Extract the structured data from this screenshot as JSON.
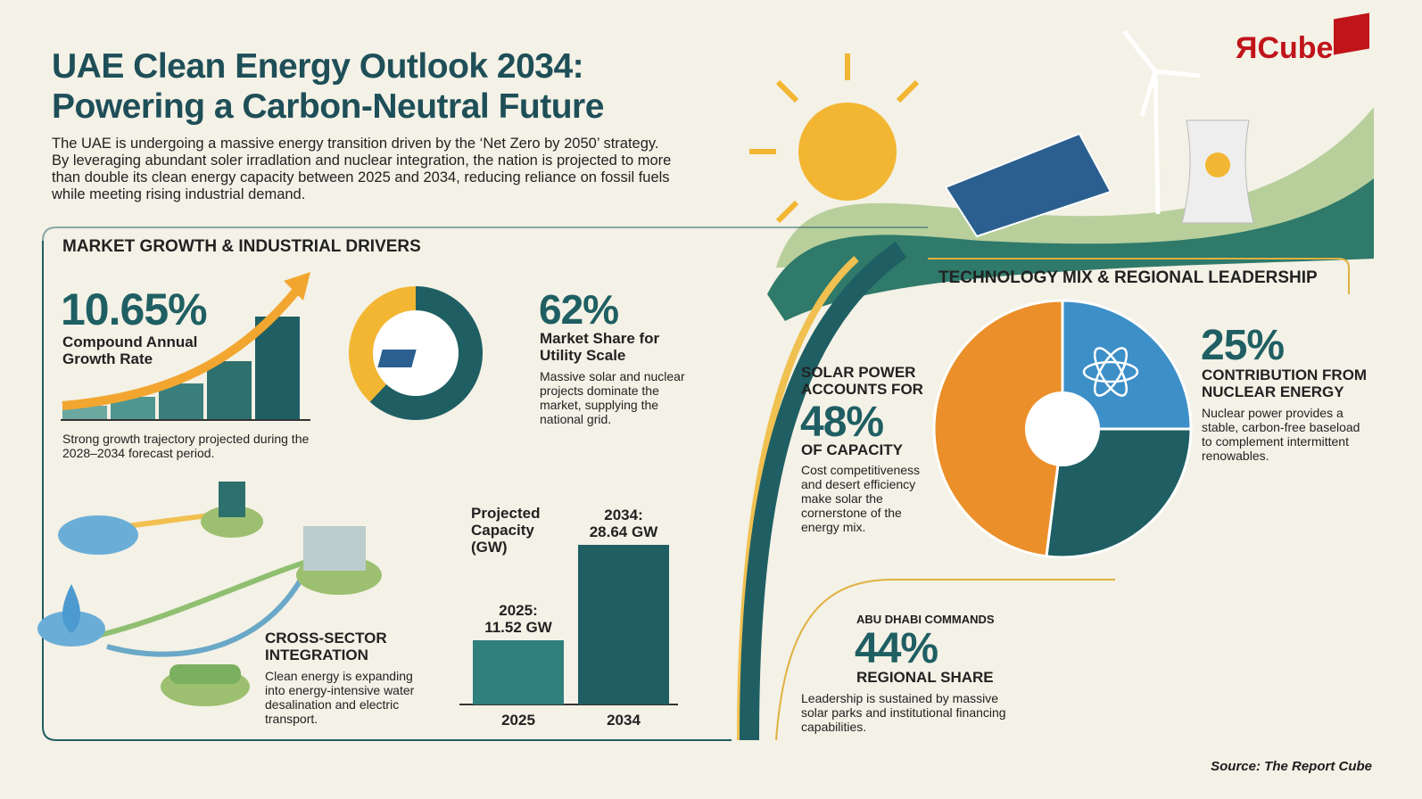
{
  "header": {
    "title_line1": "UAE Clean Energy Outlook 2034:",
    "title_line2": "Powering a Carbon-Neutral Future",
    "intro": "The UAE is undergoing a massive energy transition driven by the ‘Net Zero by 2050’ strategy. By leveraging abundant soler irradlation and nuclear integration, the nation is projected to more than double its clean energy capacity between 2025 and 2034, reducing reliance on fossil fuels while meeting rising industrial demand."
  },
  "logo": {
    "text": "ЯCube"
  },
  "market": {
    "title": "MARKET GROWTH & INDUSTRIAL DRIVERS",
    "cagr": {
      "value": "10.65%",
      "label": "Compound Annual Growth Rate",
      "note": "Strong growth trajectory projected during the 2028–2034 forecast period."
    },
    "share": {
      "value": "62%",
      "label": "Market Share for Utility Scale",
      "note": "Massive solar and nuclear projects dominate the market, supplying the national grid.",
      "percent": 62
    },
    "cross": {
      "label": "CROSS-SECTOR INTEGRATION",
      "note": "Clean energy is expanding into energy-intensive water desalination and electric transport."
    },
    "capacity": {
      "title": "Projected Capacity (GW)",
      "bars": [
        {
          "year": "2025",
          "label": "2025:",
          "value_label": "11.52 GW",
          "value": 11.52
        },
        {
          "year": "2034",
          "label": "2034:",
          "value_label": "28.64 GW",
          "value": 28.64
        }
      ]
    }
  },
  "tech": {
    "title": "TECHNOLOGY MIX & REGIONAL LEADERSHIP",
    "solar": {
      "pre": "SOLAR POWER ACCOUNTS FOR",
      "value": "48%",
      "post": "OF CAPACITY",
      "note": "Cost competitiveness and desert efficiency make solar the cornerstone of the energy mix.",
      "percent": 48
    },
    "nuclear": {
      "value": "25%",
      "label": "CONTRIBUTION FROM NUCLEAR ENERGY",
      "note": "Nuclear power provides a stable, carbon-free baseload to complement intermittent renowables.",
      "percent": 25
    },
    "abudhabi": {
      "pre": "ABU DHABI COMMANDS",
      "value": "44%",
      "post": "REGIONAL SHARE",
      "note": "Leadership is sustained by massive solar parks and institutional financing capabilities."
    }
  },
  "colors": {
    "teal": "#1f5f63",
    "yellow": "#f2b632",
    "orange": "#eb8f2a",
    "blue": "#3d8fc8"
  },
  "source": "Source: The Report Cube"
}
